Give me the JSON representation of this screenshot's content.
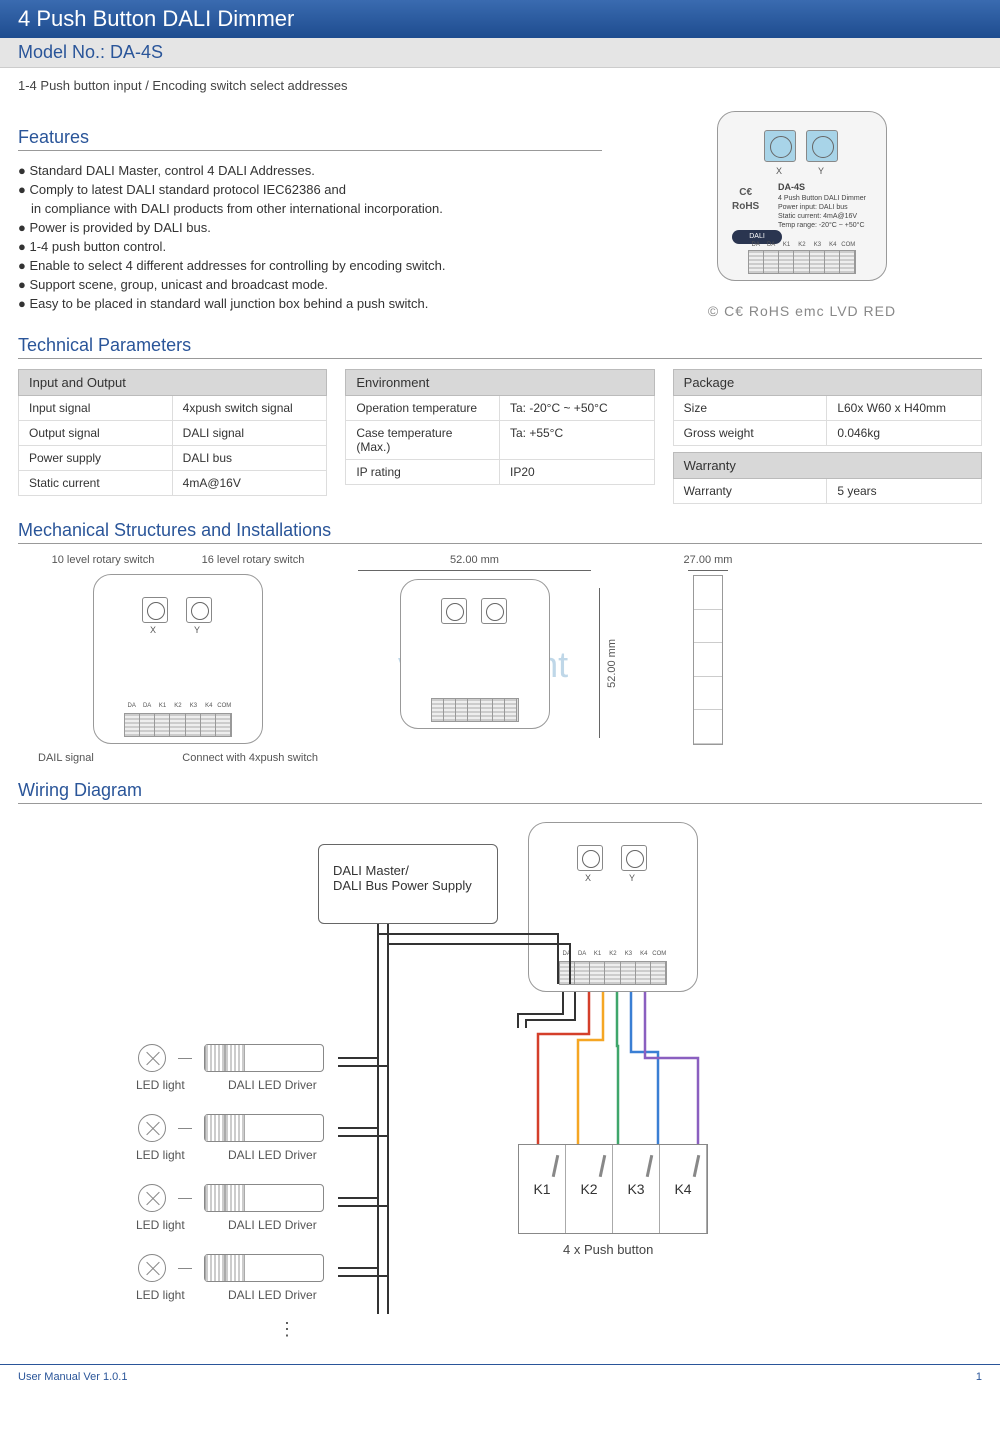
{
  "header": {
    "title": "4 Push Button DALI Dimmer",
    "model_label": "Model No.: DA-4S"
  },
  "subtitle": "1-4 Push button input / Encoding switch select addresses",
  "sections": {
    "features": "Features",
    "tech": "Technical Parameters",
    "mech": "Mechanical Structures and Installations",
    "wiring": "Wiring Diagram"
  },
  "features": [
    "Standard DALI Master, control 4 DALI Addresses.",
    "Comply to latest DALI standard protocol IEC62386 and",
    "in compliance with DALI products from other international incorporation.",
    "Power is provided by DALI bus.",
    "1-4 push button control.",
    "Enable to select 4 different addresses for controlling by encoding switch.",
    "Support scene, group, unicast and broadcast mode.",
    "Easy to be placed in standard wall junction box behind a push switch."
  ],
  "device": {
    "model": "DA-4S",
    "desc": "4 Push Button DALI Dimmer",
    "power": "Power input: DALI bus",
    "current": "Static current: 4mA@16V",
    "temp": "Temp range: -20°C ~ +50°C",
    "dial_x": "X",
    "dial_y": "Y",
    "dali_badge": "DALI",
    "terminals": [
      "DA",
      "DA",
      "K1",
      "K2",
      "K3",
      "K4",
      "COM"
    ],
    "ce": "C€",
    "rohs": "RoHS"
  },
  "cert_row": "©  C€  RoHS  emc  LVD  RED",
  "tables": {
    "io": {
      "title": "Input and Output",
      "rows": [
        [
          "Input signal",
          "4xpush switch signal"
        ],
        [
          "Output signal",
          "DALI signal"
        ],
        [
          "Power supply",
          "DALI bus"
        ],
        [
          "Static current",
          "4mA@16V"
        ]
      ]
    },
    "env": {
      "title": "Environment",
      "rows": [
        [
          "Operation temperature",
          "Ta: -20°C ~ +50°C"
        ],
        [
          "Case temperature (Max.)",
          "Ta: +55°C"
        ],
        [
          "IP rating",
          "IP20"
        ]
      ]
    },
    "pkg": {
      "title": "Package",
      "rows": [
        [
          "Size",
          "L60x W60 x H40mm"
        ],
        [
          "Gross weight",
          "0.046kg"
        ]
      ]
    },
    "warranty": {
      "title": "Warranty",
      "rows": [
        [
          "Warranty",
          "5 years"
        ]
      ]
    }
  },
  "mech": {
    "rotary10": "10 level rotary switch",
    "rotary16": "16 level rotary switch",
    "dail_signal": "DAIL signal",
    "connect": "Connect with 4xpush switch",
    "width": "52.00 mm",
    "height": "52.00 mm",
    "depth": "27.00 mm"
  },
  "watermark": "veromount",
  "wiring": {
    "master": "DALI Master/\nDALI Bus Power Supply",
    "led_light": "LED light",
    "driver": "DALI LED Driver",
    "push_keys": [
      "K1",
      "K2",
      "K3",
      "K4"
    ],
    "push_label": "4 x Push button",
    "wire_colors": [
      "#333333",
      "#333333",
      "#d43f2a",
      "#f5a623",
      "#3fa66b",
      "#3a7fd4",
      "#8a5fc0"
    ]
  },
  "footer": {
    "left": "User Manual Ver 1.0.1",
    "page": "1"
  },
  "colors": {
    "header_top": "#3a6bb0",
    "header_bottom": "#1e4c8f",
    "accent": "#2a5599",
    "dial_bg": "#a8d4e8",
    "table_header": "#d8d8d8",
    "border": "#999999"
  }
}
